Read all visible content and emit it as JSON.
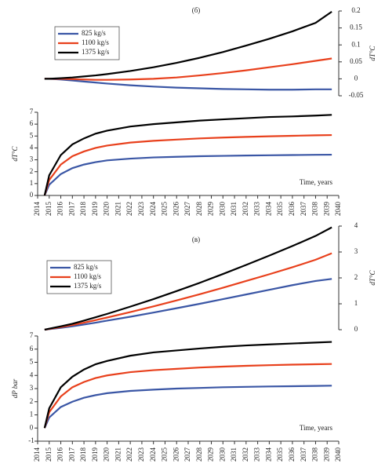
{
  "chart_data": [
    {
      "type": "line",
      "title": "(б)",
      "ylabel": "dT°C",
      "y_axis_side": "right",
      "legend": "upper left",
      "x": [
        2014.6,
        2015,
        2016,
        2017,
        2018,
        2019,
        2020,
        2022,
        2024,
        2026,
        2028,
        2030,
        2032,
        2034,
        2036,
        2038,
        2039.4
      ],
      "xlim": [
        2014,
        2040
      ],
      "ylim": [
        -0.05,
        0.2
      ],
      "yticks": [
        -0.05,
        0,
        0.05,
        0.1,
        0.15,
        0.2
      ],
      "series": [
        {
          "name": "825 kg/s",
          "color": "#3a56a5",
          "values": [
            0,
            0,
            -0.002,
            -0.005,
            -0.008,
            -0.011,
            -0.014,
            -0.019,
            -0.023,
            -0.026,
            -0.028,
            -0.03,
            -0.031,
            -0.032,
            -0.032,
            -0.031,
            -0.031
          ]
        },
        {
          "name": "1100 kg/s",
          "color": "#e8401c",
          "values": [
            0,
            0,
            0,
            -0.001,
            -0.002,
            -0.003,
            -0.003,
            -0.002,
            0,
            0.004,
            0.01,
            0.017,
            0.025,
            0.034,
            0.043,
            0.053,
            0.06
          ]
        },
        {
          "name": "1375 kg/s",
          "color": "#000000",
          "values": [
            0,
            0,
            0.002,
            0.004,
            0.007,
            0.01,
            0.014,
            0.023,
            0.034,
            0.047,
            0.062,
            0.079,
            0.098,
            0.118,
            0.14,
            0.165,
            0.198
          ]
        }
      ]
    },
    {
      "type": "line",
      "ylabel": "dT°C",
      "xlabel": "Time, years",
      "y_axis_side": "left",
      "x": [
        2014.6,
        2015,
        2016,
        2017,
        2018,
        2019,
        2020,
        2022,
        2024,
        2026,
        2028,
        2030,
        2032,
        2034,
        2036,
        2038,
        2039.4
      ],
      "xlim": [
        2014,
        2040
      ],
      "xticks": [
        2014,
        2015,
        2016,
        2017,
        2018,
        2019,
        2020,
        2021,
        2022,
        2023,
        2024,
        2025,
        2026,
        2027,
        2028,
        2029,
        2030,
        2031,
        2032,
        2033,
        2034,
        2035,
        2036,
        2037,
        2038,
        2039,
        2040
      ],
      "ylim": [
        0,
        7
      ],
      "yticks": [
        0,
        1,
        2,
        3,
        4,
        5,
        6,
        7
      ],
      "series": [
        {
          "color": "#3a56a5",
          "values": [
            0,
            0.9,
            1.8,
            2.3,
            2.6,
            2.8,
            2.95,
            3.1,
            3.2,
            3.25,
            3.3,
            3.33,
            3.36,
            3.38,
            3.4,
            3.42,
            3.43
          ]
        },
        {
          "color": "#e8401c",
          "values": [
            0,
            1.3,
            2.6,
            3.3,
            3.7,
            4.0,
            4.2,
            4.45,
            4.6,
            4.7,
            4.8,
            4.87,
            4.93,
            4.98,
            5.02,
            5.06,
            5.08
          ]
        },
        {
          "color": "#000000",
          "values": [
            0,
            1.7,
            3.4,
            4.3,
            4.8,
            5.2,
            5.45,
            5.8,
            6.0,
            6.15,
            6.3,
            6.4,
            6.5,
            6.6,
            6.65,
            6.72,
            6.78
          ]
        }
      ]
    },
    {
      "type": "line",
      "title": "(в)",
      "ylabel": "dT°C",
      "y_axis_side": "right",
      "legend": "upper left",
      "x": [
        2014.6,
        2015,
        2016,
        2017,
        2018,
        2019,
        2020,
        2022,
        2024,
        2026,
        2028,
        2030,
        2032,
        2034,
        2036,
        2038,
        2039.4
      ],
      "xlim": [
        2014,
        2040
      ],
      "ylim": [
        0,
        4
      ],
      "yticks": [
        0,
        1,
        2,
        3,
        4
      ],
      "series": [
        {
          "name": "825 kg/s",
          "color": "#3a56a5",
          "values": [
            0,
            0.02,
            0.07,
            0.13,
            0.2,
            0.27,
            0.35,
            0.5,
            0.66,
            0.83,
            1.0,
            1.18,
            1.36,
            1.54,
            1.72,
            1.88,
            1.96
          ]
        },
        {
          "name": "1100 kg/s",
          "color": "#e8401c",
          "values": [
            0,
            0.03,
            0.1,
            0.18,
            0.27,
            0.37,
            0.47,
            0.68,
            0.9,
            1.13,
            1.37,
            1.62,
            1.88,
            2.14,
            2.41,
            2.7,
            2.95
          ]
        },
        {
          "name": "1375 kg/s",
          "color": "#000000",
          "values": [
            0,
            0.04,
            0.13,
            0.23,
            0.35,
            0.48,
            0.61,
            0.89,
            1.18,
            1.49,
            1.81,
            2.15,
            2.5,
            2.86,
            3.23,
            3.62,
            3.95
          ]
        }
      ]
    },
    {
      "type": "line",
      "ylabel": "dP bar",
      "xlabel": "Time, years",
      "y_axis_side": "left",
      "x": [
        2014.6,
        2015,
        2016,
        2017,
        2018,
        2019,
        2020,
        2022,
        2024,
        2026,
        2028,
        2030,
        2032,
        2034,
        2036,
        2038,
        2039.4
      ],
      "xlim": [
        2014,
        2040
      ],
      "xticks": [
        2014,
        2015,
        2016,
        2017,
        2018,
        2019,
        2020,
        2021,
        2022,
        2023,
        2024,
        2025,
        2026,
        2027,
        2028,
        2029,
        2030,
        2031,
        2032,
        2033,
        2034,
        2035,
        2036,
        2037,
        2038,
        2039,
        2040
      ],
      "ylim": [
        -1,
        7
      ],
      "yticks": [
        -1,
        0,
        1,
        2,
        3,
        4,
        5,
        6,
        7
      ],
      "series": [
        {
          "color": "#3a56a5",
          "values": [
            0,
            0.8,
            1.6,
            2.0,
            2.3,
            2.5,
            2.65,
            2.82,
            2.92,
            3.0,
            3.05,
            3.1,
            3.13,
            3.16,
            3.18,
            3.2,
            3.22
          ]
        },
        {
          "color": "#e8401c",
          "values": [
            0,
            1.2,
            2.4,
            3.1,
            3.5,
            3.8,
            4.0,
            4.25,
            4.4,
            4.5,
            4.6,
            4.67,
            4.73,
            4.78,
            4.82,
            4.85,
            4.87
          ]
        },
        {
          "color": "#000000",
          "values": [
            0,
            1.5,
            3.1,
            3.9,
            4.45,
            4.85,
            5.1,
            5.5,
            5.75,
            5.9,
            6.05,
            6.18,
            6.28,
            6.36,
            6.43,
            6.5,
            6.55
          ]
        }
      ]
    }
  ]
}
